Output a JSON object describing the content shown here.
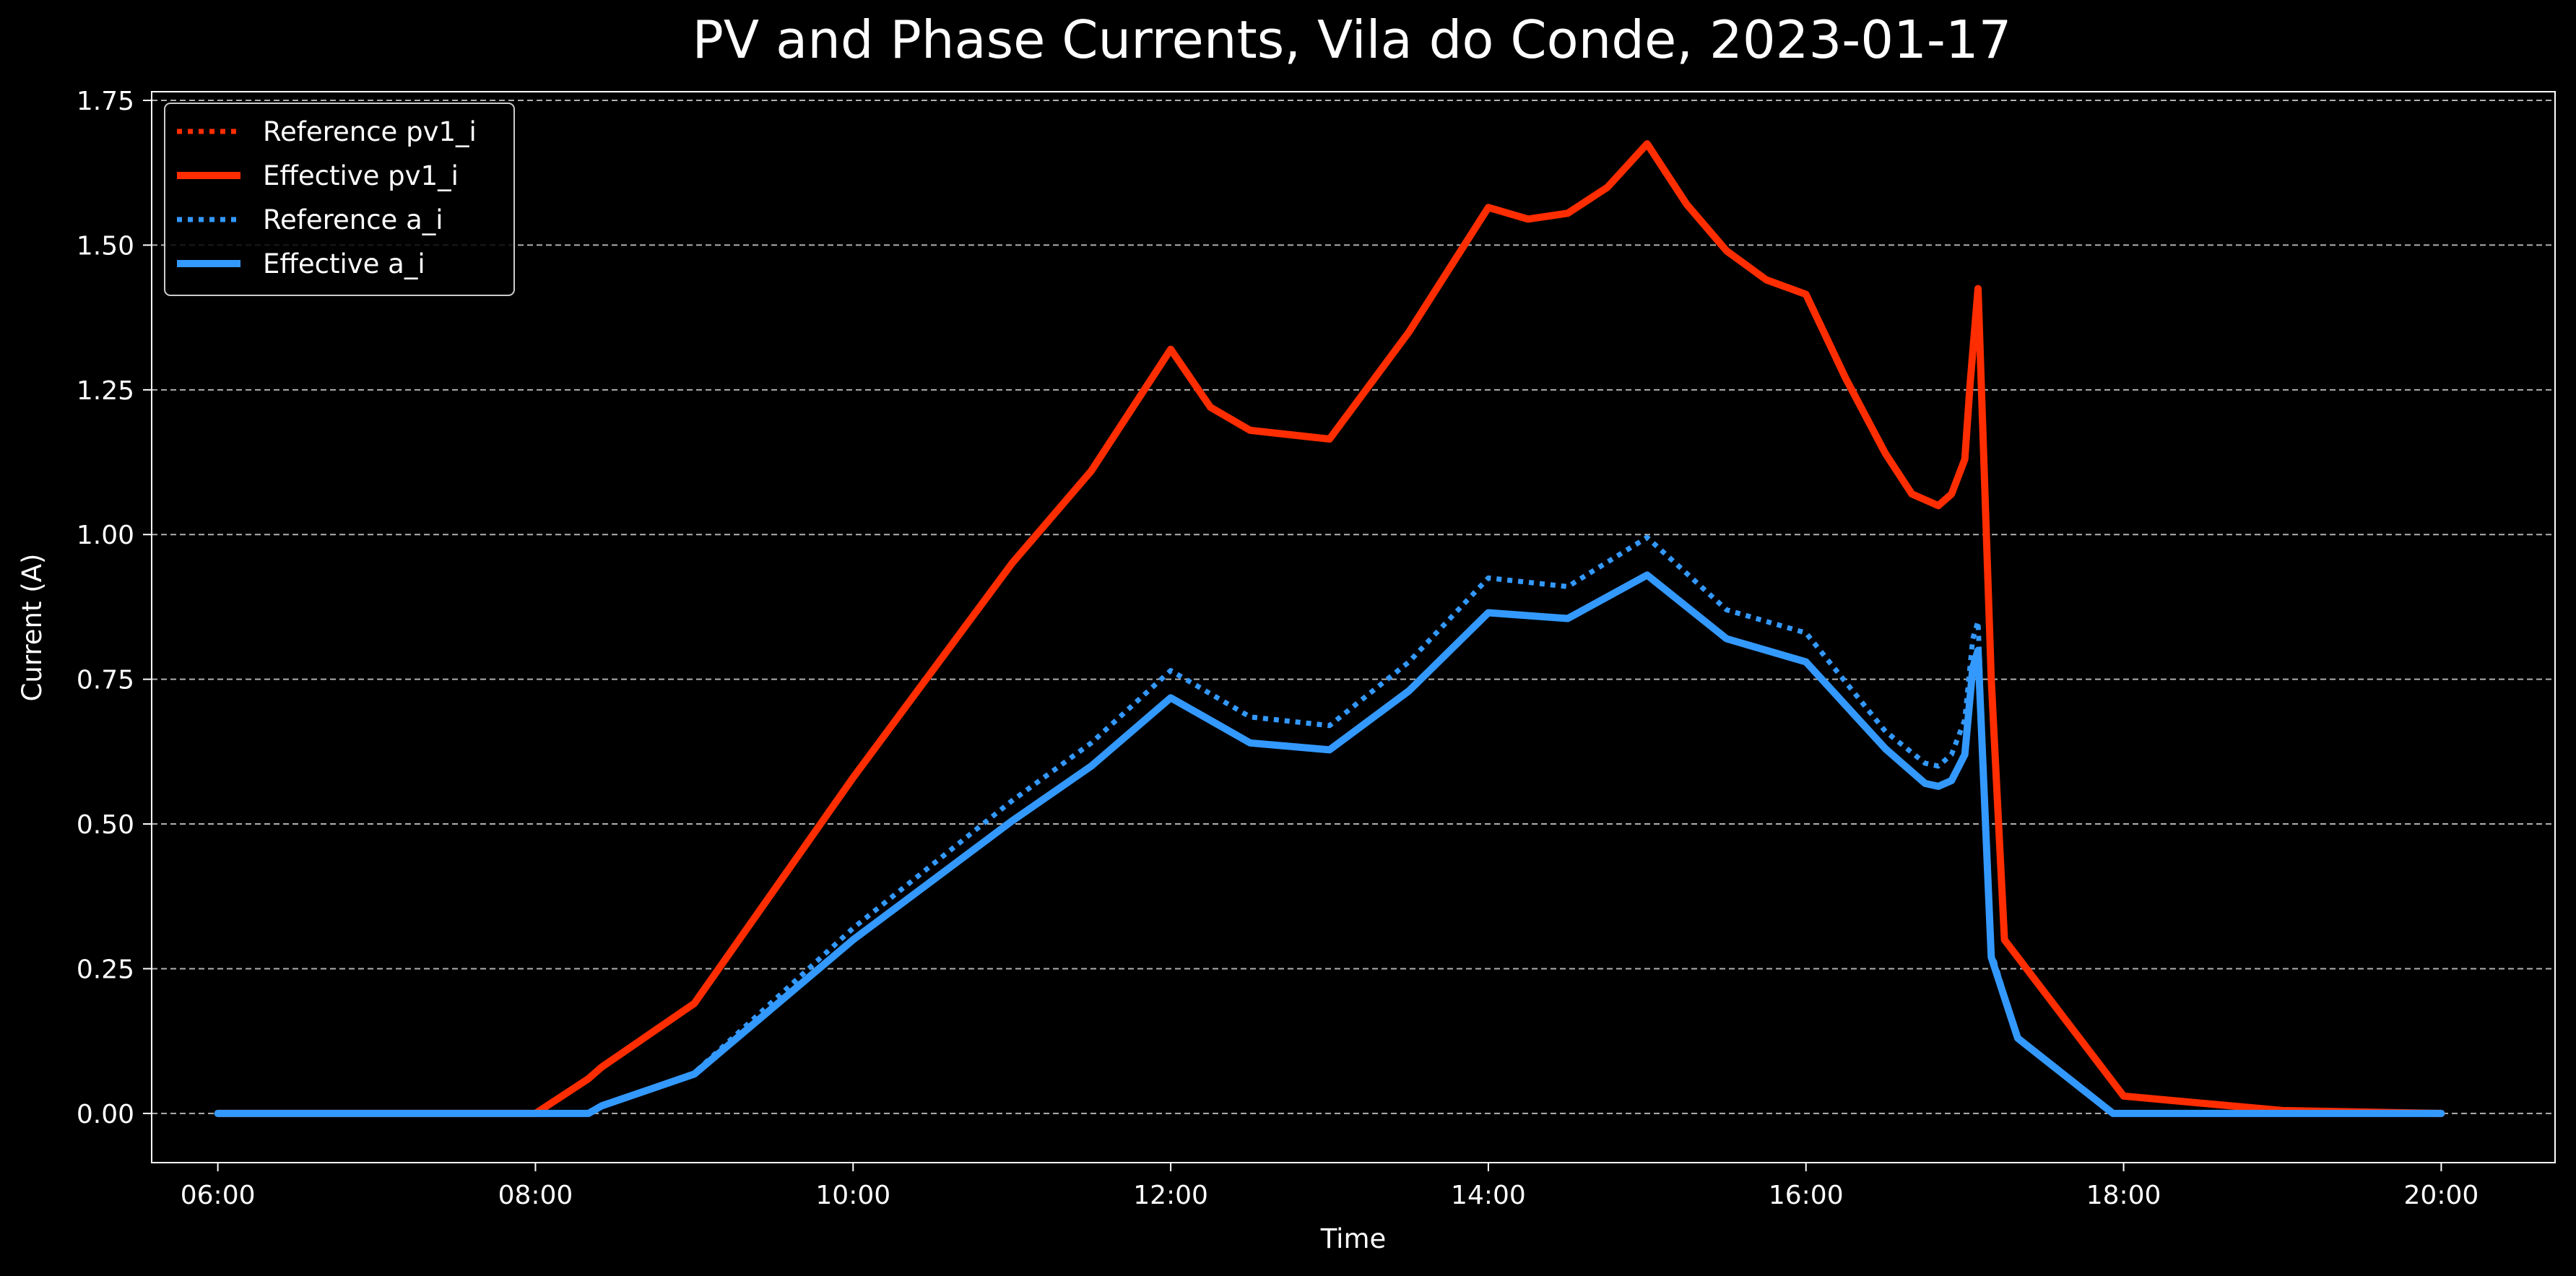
{
  "chart_data": {
    "type": "line",
    "title": "PV and Phase Currents, Vila do Conde, 2023-01-17",
    "xlabel": "Time",
    "ylabel": "Current (A)",
    "x_ticks": [
      "06:00",
      "08:00",
      "10:00",
      "12:00",
      "14:00",
      "16:00",
      "18:00",
      "20:00"
    ],
    "y_ticks": [
      "0.00",
      "0.25",
      "0.50",
      "0.75",
      "1.00",
      "1.25",
      "1.50",
      "1.75"
    ],
    "xlim": [
      "05:35",
      "20:43"
    ],
    "ylim": [
      -0.085,
      1.765
    ],
    "grid": "y-dashed",
    "legend_position": "upper-left",
    "series": [
      {
        "name": "Reference pv1_i",
        "color": "#ff2d00",
        "style": "dotted",
        "x": [
          "06:00",
          "08:00",
          "08:20",
          "08:25",
          "09:00",
          "10:00",
          "11:00",
          "11:30",
          "12:00",
          "12:15",
          "12:30",
          "13:00",
          "13:30",
          "14:00",
          "14:15",
          "14:30",
          "14:45",
          "15:00",
          "15:15",
          "15:30",
          "15:45",
          "16:00",
          "16:15",
          "16:30",
          "16:40",
          "16:50",
          "16:55",
          "17:00",
          "17:02",
          "17:05",
          "17:10",
          "17:15",
          "18:00",
          "19:00",
          "20:00"
        ],
        "y": [
          0,
          0,
          0.06,
          0.08,
          0.19,
          0.58,
          0.95,
          1.11,
          1.32,
          1.22,
          1.18,
          1.165,
          1.35,
          1.565,
          1.545,
          1.555,
          1.6,
          1.675,
          1.57,
          1.49,
          1.44,
          1.415,
          1.27,
          1.14,
          1.07,
          1.05,
          1.07,
          1.13,
          1.26,
          1.425,
          0.75,
          0.3,
          0.03,
          0.005,
          0
        ]
      },
      {
        "name": "Effective pv1_i",
        "color": "#ff2d00",
        "style": "solid",
        "x": [
          "06:00",
          "08:00",
          "08:20",
          "08:25",
          "09:00",
          "10:00",
          "11:00",
          "11:30",
          "12:00",
          "12:15",
          "12:30",
          "13:00",
          "13:30",
          "14:00",
          "14:15",
          "14:30",
          "14:45",
          "15:00",
          "15:15",
          "15:30",
          "15:45",
          "16:00",
          "16:15",
          "16:30",
          "16:40",
          "16:50",
          "16:55",
          "17:00",
          "17:02",
          "17:05",
          "17:10",
          "17:15",
          "18:00",
          "19:00",
          "20:00"
        ],
        "y": [
          0,
          0,
          0.06,
          0.08,
          0.19,
          0.58,
          0.95,
          1.11,
          1.32,
          1.22,
          1.18,
          1.165,
          1.35,
          1.565,
          1.545,
          1.555,
          1.6,
          1.675,
          1.57,
          1.49,
          1.44,
          1.415,
          1.27,
          1.14,
          1.07,
          1.05,
          1.07,
          1.13,
          1.26,
          1.425,
          0.75,
          0.3,
          0.03,
          0.005,
          0
        ]
      },
      {
        "name": "Reference a_i",
        "color": "#3399ff",
        "style": "dotted",
        "x": [
          "06:00",
          "08:20",
          "08:25",
          "09:00",
          "10:00",
          "11:00",
          "11:30",
          "12:00",
          "12:30",
          "13:00",
          "13:30",
          "14:00",
          "14:30",
          "15:00",
          "15:30",
          "16:00",
          "16:30",
          "16:45",
          "16:50",
          "16:55",
          "17:00",
          "17:03",
          "17:05",
          "17:10",
          "17:20",
          "17:56",
          "20:00"
        ],
        "y": [
          0,
          0,
          0.013,
          0.07,
          0.32,
          0.54,
          0.64,
          0.765,
          0.685,
          0.67,
          0.78,
          0.925,
          0.91,
          0.995,
          0.87,
          0.83,
          0.66,
          0.605,
          0.6,
          0.62,
          0.68,
          0.82,
          0.85,
          0.28,
          0.13,
          0,
          0
        ]
      },
      {
        "name": "Effective a_i",
        "color": "#3399ff",
        "style": "solid",
        "x": [
          "06:00",
          "08:20",
          "08:25",
          "09:00",
          "10:00",
          "11:00",
          "11:30",
          "12:00",
          "12:30",
          "13:00",
          "13:30",
          "14:00",
          "14:30",
          "15:00",
          "15:30",
          "16:00",
          "16:30",
          "16:45",
          "16:50",
          "16:55",
          "17:00",
          "17:03",
          "17:05",
          "17:10",
          "17:20",
          "17:56",
          "20:00"
        ],
        "y": [
          0,
          0,
          0.013,
          0.068,
          0.3,
          0.505,
          0.6,
          0.718,
          0.64,
          0.628,
          0.73,
          0.865,
          0.855,
          0.93,
          0.82,
          0.78,
          0.63,
          0.57,
          0.565,
          0.575,
          0.62,
          0.77,
          0.8,
          0.27,
          0.13,
          0,
          0
        ]
      }
    ]
  }
}
